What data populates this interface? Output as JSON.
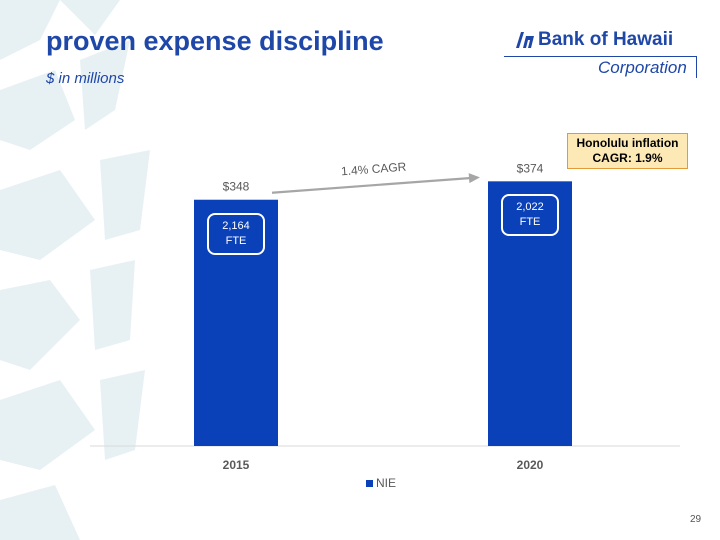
{
  "slide": {
    "title": "proven expense discipline",
    "subtitle": "$ in millions",
    "page_number": "29"
  },
  "logo": {
    "name": "Bank of Hawaii",
    "sub": "Corporation"
  },
  "callout": {
    "line1": "Honolulu inflation",
    "line2": "CAGR: 1.9%"
  },
  "colors": {
    "bar": "#0a40b8",
    "title": "#1f47a8",
    "arrow": "#a6a6a6",
    "callout_bg": "#fde9b6",
    "callout_border": "#e59a3a"
  },
  "chart_data": {
    "type": "bar",
    "categories": [
      "2015",
      "2020"
    ],
    "series": [
      {
        "name": "NIE",
        "values": [
          348,
          374
        ]
      }
    ],
    "value_labels": [
      "$348",
      "$374"
    ],
    "fte_labels": [
      {
        "value": "2,164",
        "unit": "FTE"
      },
      {
        "value": "2,022",
        "unit": "FTE"
      }
    ],
    "annotation": "1.4% CAGR",
    "legend": {
      "position": "bottom",
      "label": "NIE"
    },
    "ylim": [
      0,
      390
    ],
    "grid": false
  }
}
